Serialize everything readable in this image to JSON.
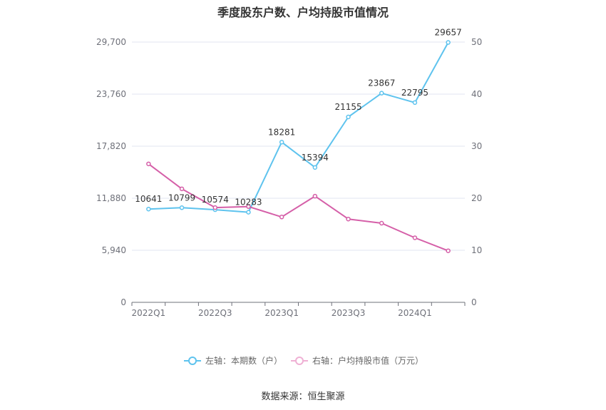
{
  "title": "季度股东户数、户均持股市值情况",
  "source": "数据来源：恒生聚源",
  "chart_data": {
    "type": "line",
    "x": [
      "2022Q1",
      "2022Q2",
      "2022Q3",
      "2022Q4",
      "2023Q1",
      "2023Q2",
      "2023Q3",
      "2023Q4",
      "2024Q1",
      "2024Q2"
    ],
    "x_tick_labels": [
      "2022Q1",
      "2022Q3",
      "2023Q1",
      "2023Q3",
      "2024Q1"
    ],
    "left_axis": {
      "ticks": [
        "0",
        "5,940",
        "11,880",
        "17,820",
        "23,760",
        "29,700"
      ],
      "ylim": [
        0,
        29700
      ]
    },
    "right_axis": {
      "ticks": [
        "0",
        "10",
        "20",
        "30",
        "40",
        "50"
      ],
      "ylim": [
        0,
        50
      ]
    },
    "series": [
      {
        "name": "左轴：本期数（户）",
        "axis": "left",
        "color": "#5ec3ee",
        "values": [
          10641,
          10799,
          10574,
          10283,
          18281,
          15394,
          21155,
          23867,
          22795,
          29657
        ],
        "labels": [
          "10641",
          "10799",
          "10574",
          "10283",
          "18281",
          "15394",
          "21155",
          "23867",
          "22795",
          "29657"
        ]
      },
      {
        "name": "右轴：户均持股市值（万元）",
        "axis": "right",
        "color": "#d55fa8",
        "values": [
          26.6,
          21.8,
          18.2,
          18.4,
          16.4,
          20.4,
          16.0,
          15.2,
          12.4,
          9.9
        ]
      }
    ],
    "grid": true,
    "legend_position": "bottom"
  }
}
